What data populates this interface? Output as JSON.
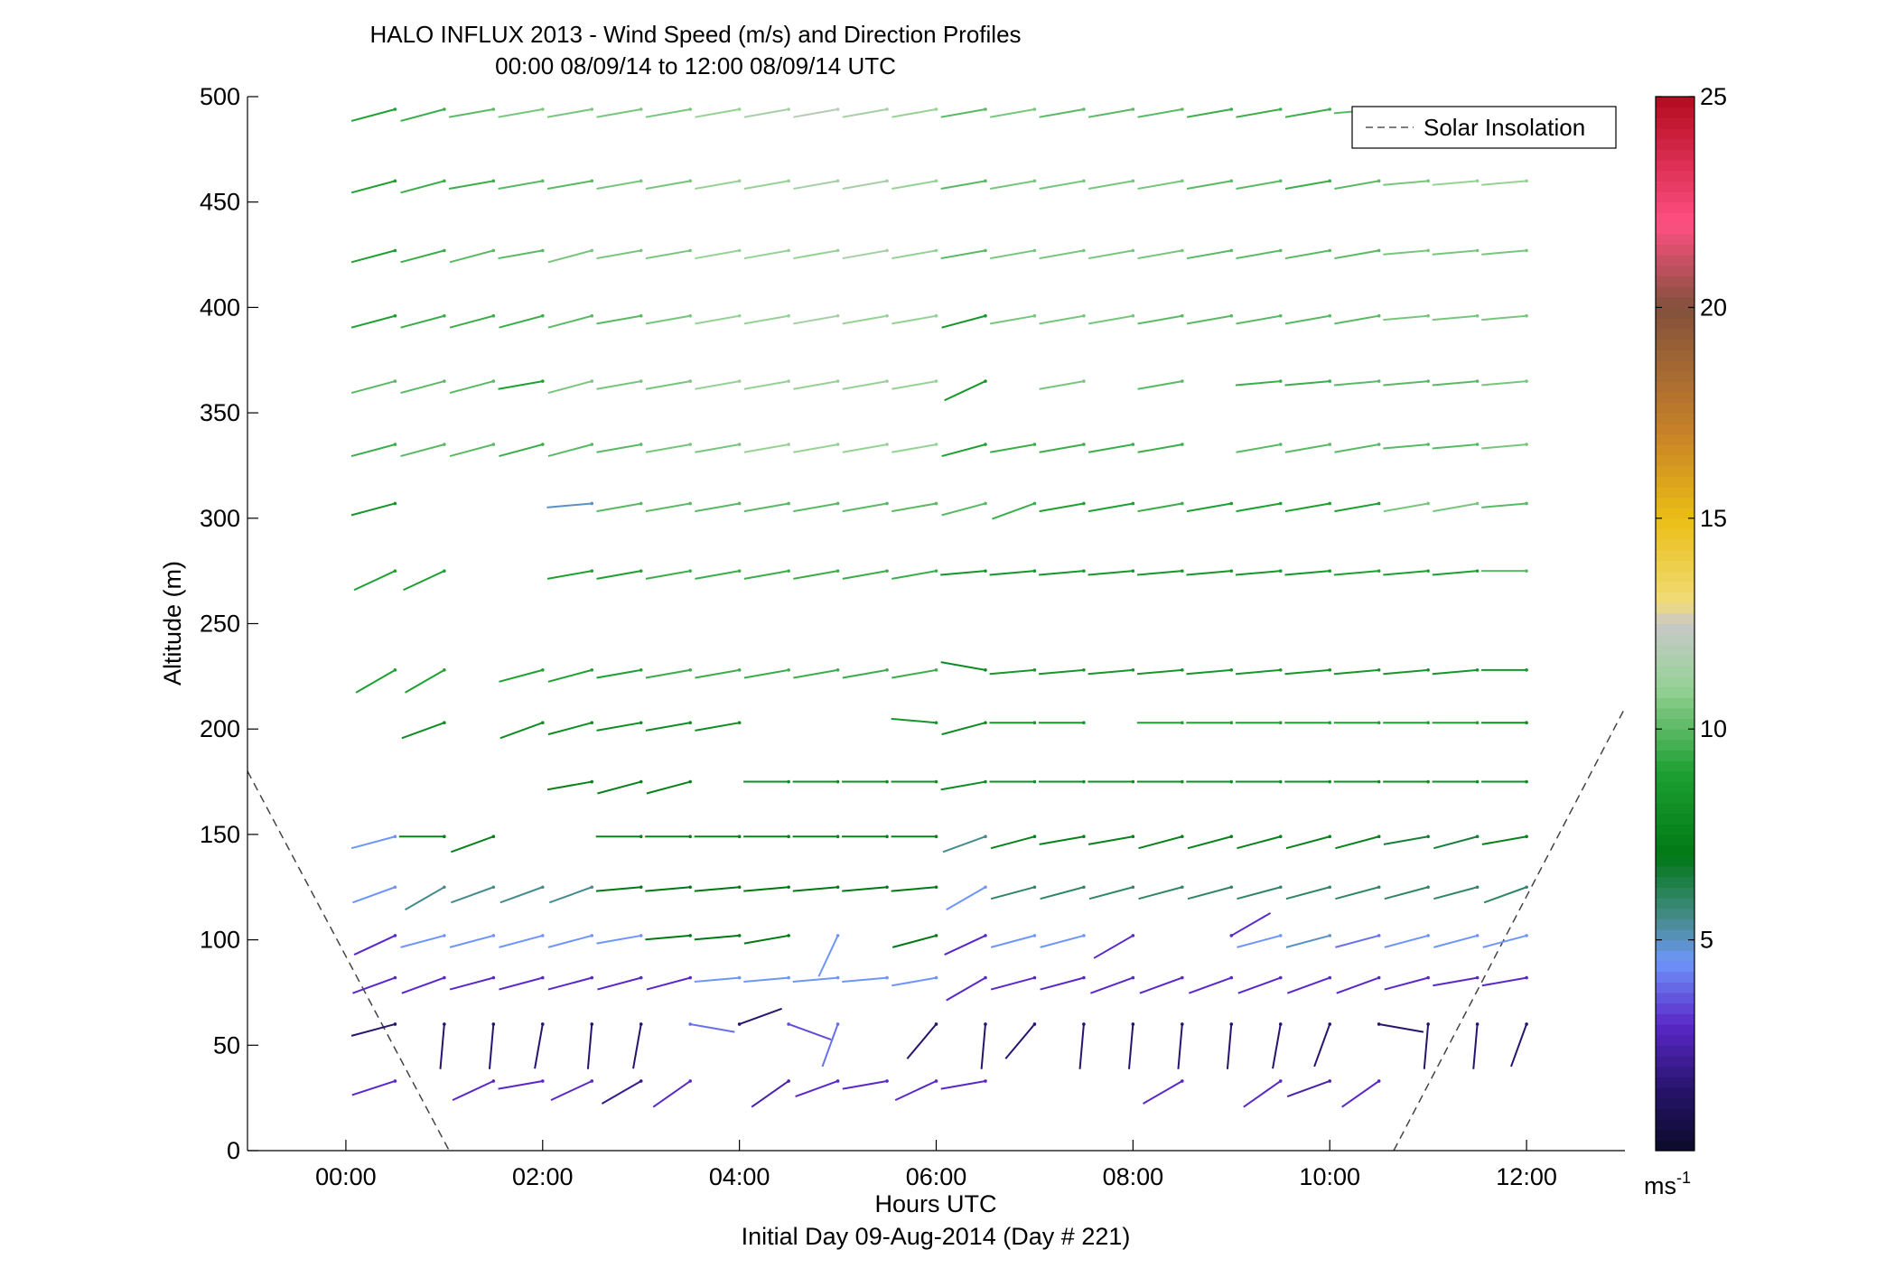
{
  "chart_data": {
    "type": "wind-barb",
    "title": "HALO INFLUX 2013 - Wind Speed (m/s) and Direction Profiles",
    "subtitle": "00:00 08/09/14 to 12:00 08/09/14  UTC",
    "xlabel": "Hours UTC",
    "xlabel2": "Initial Day 09-Aug-2014 (Day # 221)",
    "ylabel": "Altitude (m)",
    "xlim": [
      -1.0,
      13.0
    ],
    "ylim": [
      0,
      500
    ],
    "xticks": [
      0,
      2,
      4,
      6,
      8,
      10,
      12
    ],
    "xtick_labels": [
      "00:00",
      "02:00",
      "04:00",
      "06:00",
      "08:00",
      "10:00",
      "12:00"
    ],
    "yticks": [
      0,
      50,
      100,
      150,
      200,
      250,
      300,
      350,
      400,
      450,
      500
    ],
    "ytick_labels": [
      "0",
      "50",
      "100",
      "150",
      "200",
      "250",
      "300",
      "350",
      "400",
      "450",
      "500"
    ],
    "legend": {
      "label": "Solar Insolation",
      "placement": "top-right",
      "style": "dashed"
    },
    "colorbar": {
      "min": 0,
      "max": 25,
      "ticks": [
        5,
        10,
        15,
        20,
        25
      ],
      "tick_labels": [
        "5",
        "10",
        "15",
        "20",
        "25"
      ],
      "unit": "ms",
      "unit_exp": "-1"
    },
    "solar_insolation": [
      {
        "x": [
          -1.0,
          1.05
        ],
        "y": [
          180,
          0
        ]
      },
      {
        "x": [
          10.65,
          13.0
        ],
        "y": [
          0,
          210
        ]
      }
    ],
    "altitudes": [
      33,
      60,
      82,
      102,
      125,
      149,
      175,
      203,
      228,
      275,
      307,
      335,
      365,
      396,
      427,
      460,
      494
    ],
    "times": [
      0.5,
      1.0,
      1.5,
      2.0,
      2.5,
      3.0,
      3.5,
      4.0,
      4.5,
      5.0,
      5.5,
      6.0,
      6.5,
      7.0,
      7.5,
      8.0,
      8.5,
      9.0,
      9.5,
      10.0,
      10.5,
      11.0,
      11.5,
      12.0
    ],
    "dir_label": "direction (deg, wind from)",
    "speed_rows": [
      [
        3,
        null,
        3,
        3,
        3,
        2,
        3,
        null,
        2.5,
        3,
        3,
        3,
        3,
        null,
        null,
        null,
        3,
        null,
        3,
        2.5,
        3,
        null,
        null,
        null
      ],
      [
        1.5,
        1.5,
        1.5,
        1.5,
        1.5,
        1.5,
        4,
        1.5,
        3.5,
        4,
        null,
        1.5,
        1.5,
        1.5,
        1.5,
        1.5,
        1.5,
        1.5,
        1.5,
        1.5,
        1.5,
        1.5,
        1.5,
        1.5
      ],
      [
        3,
        3,
        3,
        3,
        3,
        3,
        3,
        4.5,
        4.5,
        4.5,
        4.5,
        4.5,
        3,
        3,
        3,
        3,
        3,
        3,
        3,
        3,
        3,
        3,
        3,
        3
      ],
      [
        3,
        4.5,
        4.5,
        4.5,
        4.5,
        4.5,
        7,
        7,
        7,
        4.5,
        null,
        7,
        3,
        4.5,
        4.5,
        3,
        null,
        3,
        4.5,
        5,
        4,
        4.5,
        4.5,
        4.5
      ],
      [
        4.5,
        5.5,
        5.5,
        5.5,
        5.5,
        7,
        7,
        7,
        7,
        7,
        7,
        7,
        4.5,
        6,
        6,
        6,
        6,
        6,
        6,
        6,
        6,
        6,
        6,
        6
      ],
      [
        4.5,
        7.5,
        7.5,
        null,
        null,
        7.5,
        7.5,
        7.5,
        7.5,
        7.5,
        7.5,
        7.5,
        5.5,
        7.5,
        7.5,
        7.5,
        7.5,
        7.5,
        7.5,
        7.5,
        7.5,
        6.5,
        6.5,
        7.5
      ],
      [
        null,
        null,
        null,
        null,
        7.5,
        7.5,
        7.5,
        null,
        8,
        8,
        8,
        8,
        8,
        8,
        8,
        8,
        8,
        8,
        8,
        8,
        8,
        8,
        8,
        8
      ],
      [
        null,
        8,
        null,
        8,
        8,
        8,
        8,
        8,
        null,
        null,
        null,
        8.5,
        8,
        8.5,
        8.5,
        null,
        9,
        9,
        9,
        9,
        9,
        9,
        9,
        8
      ],
      [
        9,
        9,
        null,
        9,
        9,
        9,
        9.5,
        9.5,
        9.5,
        9.5,
        9.5,
        9.5,
        8,
        8.5,
        8.5,
        8.5,
        8.5,
        8.5,
        8.5,
        8.5,
        8.5,
        8.5,
        8.5,
        8.5
      ],
      [
        9,
        9,
        null,
        null,
        9,
        9,
        9.5,
        9.5,
        9.5,
        9.5,
        9.5,
        9.5,
        8.5,
        8.5,
        8.5,
        8.5,
        8.5,
        8.5,
        8.5,
        8.5,
        9,
        9,
        9,
        10
      ],
      [
        8.5,
        null,
        null,
        null,
        5,
        10,
        10,
        10,
        10,
        10,
        10,
        10,
        10,
        9.5,
        9,
        9,
        9.5,
        9,
        9,
        9,
        9,
        10.5,
        10.5,
        10
      ],
      [
        9.5,
        10,
        10,
        9.5,
        10,
        10,
        10.5,
        10.5,
        11,
        11,
        11,
        11,
        9,
        9.5,
        9.5,
        9.5,
        9.5,
        null,
        10,
        10,
        10,
        10,
        10,
        10.5
      ],
      [
        10,
        10,
        10,
        9,
        10.5,
        10.5,
        10.5,
        11,
        11,
        11,
        11,
        11,
        8.5,
        null,
        10.5,
        null,
        10,
        null,
        9.5,
        9.5,
        10,
        10,
        10,
        10.5
      ],
      [
        9,
        9.5,
        9.5,
        9.5,
        10,
        10,
        10.5,
        11,
        11,
        11.5,
        11,
        11,
        8.5,
        10.5,
        10.5,
        10.5,
        10,
        10,
        10,
        10,
        10,
        10.5,
        10.5,
        10.5
      ],
      [
        9,
        9.5,
        10,
        10,
        10.5,
        10.5,
        10.5,
        11,
        11,
        11,
        11.5,
        11,
        10,
        10.5,
        10.5,
        10.5,
        10.5,
        10,
        10,
        10,
        10,
        10.5,
        10.5,
        10.5
      ],
      [
        9,
        9.5,
        9.5,
        10,
        10,
        10.5,
        10.5,
        11,
        11,
        11.5,
        11.5,
        11,
        10,
        10.5,
        10.5,
        10.5,
        10.5,
        10,
        10,
        9.5,
        10,
        10.5,
        11,
        11
      ],
      [
        9,
        9.5,
        10,
        10.5,
        10.5,
        10.5,
        10.5,
        11,
        11.5,
        12,
        11.5,
        11,
        10,
        10.5,
        10,
        10,
        10,
        9.5,
        9.5,
        9.5,
        10,
        null,
        null,
        null
      ]
    ],
    "dir_rows": [
      [
        72,
        null,
        65,
        80,
        65,
        60,
        55,
        null,
        55,
        70,
        80,
        65,
        80,
        null,
        null,
        null,
        60,
        null,
        55,
        70,
        55,
        null,
        null,
        null
      ],
      [
        75,
        5,
        5,
        10,
        5,
        10,
        280,
        250,
        290,
        20,
        null,
        40,
        5,
        40,
        5,
        5,
        5,
        5,
        10,
        20,
        280,
        5,
        5,
        20
      ],
      [
        70,
        70,
        75,
        75,
        75,
        75,
        75,
        85,
        85,
        85,
        85,
        80,
        60,
        75,
        75,
        70,
        70,
        70,
        70,
        70,
        70,
        75,
        80,
        80
      ],
      [
        65,
        75,
        75,
        75,
        75,
        80,
        85,
        85,
        80,
        25,
        null,
        75,
        65,
        75,
        75,
        60,
        null,
        240,
        75,
        75,
        75,
        75,
        75,
        75
      ],
      [
        70,
        60,
        70,
        70,
        70,
        85,
        85,
        85,
        85,
        85,
        85,
        85,
        60,
        75,
        75,
        75,
        75,
        75,
        75,
        75,
        75,
        75,
        75,
        70
      ],
      [
        75,
        90,
        70,
        null,
        null,
        90,
        90,
        90,
        90,
        90,
        90,
        90,
        70,
        75,
        80,
        80,
        75,
        75,
        75,
        75,
        75,
        80,
        75,
        80
      ],
      [
        null,
        null,
        null,
        null,
        80,
        75,
        75,
        null,
        90,
        90,
        90,
        90,
        80,
        90,
        90,
        90,
        90,
        90,
        90,
        90,
        90,
        90,
        90,
        90
      ],
      [
        null,
        70,
        null,
        70,
        75,
        80,
        80,
        80,
        null,
        null,
        null,
        95,
        75,
        90,
        90,
        null,
        90,
        90,
        90,
        90,
        90,
        90,
        90,
        90
      ],
      [
        60,
        60,
        null,
        75,
        75,
        80,
        80,
        80,
        80,
        80,
        80,
        80,
        100,
        85,
        85,
        85,
        85,
        85,
        85,
        85,
        85,
        85,
        85,
        90
      ],
      [
        65,
        65,
        null,
        null,
        80,
        80,
        80,
        80,
        80,
        80,
        80,
        80,
        85,
        85,
        85,
        85,
        85,
        85,
        85,
        85,
        85,
        85,
        85,
        90
      ],
      [
        75,
        null,
        null,
        null,
        85,
        80,
        80,
        80,
        80,
        80,
        80,
        80,
        75,
        70,
        80,
        80,
        80,
        80,
        80,
        80,
        80,
        80,
        80,
        85
      ],
      [
        75,
        75,
        75,
        75,
        75,
        80,
        80,
        80,
        80,
        80,
        80,
        80,
        75,
        80,
        80,
        80,
        80,
        null,
        80,
        80,
        80,
        85,
        85,
        85
      ],
      [
        75,
        75,
        75,
        80,
        75,
        80,
        80,
        80,
        80,
        80,
        80,
        80,
        65,
        null,
        80,
        null,
        80,
        null,
        85,
        85,
        85,
        85,
        85,
        85
      ],
      [
        75,
        75,
        75,
        75,
        75,
        80,
        80,
        80,
        80,
        80,
        80,
        80,
        75,
        80,
        80,
        80,
        80,
        80,
        80,
        80,
        80,
        85,
        85,
        85
      ],
      [
        75,
        75,
        75,
        80,
        75,
        80,
        80,
        80,
        80,
        80,
        80,
        80,
        80,
        80,
        80,
        80,
        80,
        80,
        80,
        80,
        80,
        85,
        85,
        85
      ],
      [
        75,
        75,
        80,
        80,
        80,
        80,
        80,
        80,
        80,
        80,
        80,
        80,
        80,
        80,
        80,
        80,
        80,
        80,
        80,
        80,
        80,
        85,
        85,
        85
      ],
      [
        75,
        75,
        80,
        80,
        80,
        80,
        80,
        80,
        80,
        80,
        80,
        80,
        80,
        80,
        80,
        80,
        80,
        80,
        80,
        80,
        85,
        null,
        null,
        null
      ]
    ]
  }
}
